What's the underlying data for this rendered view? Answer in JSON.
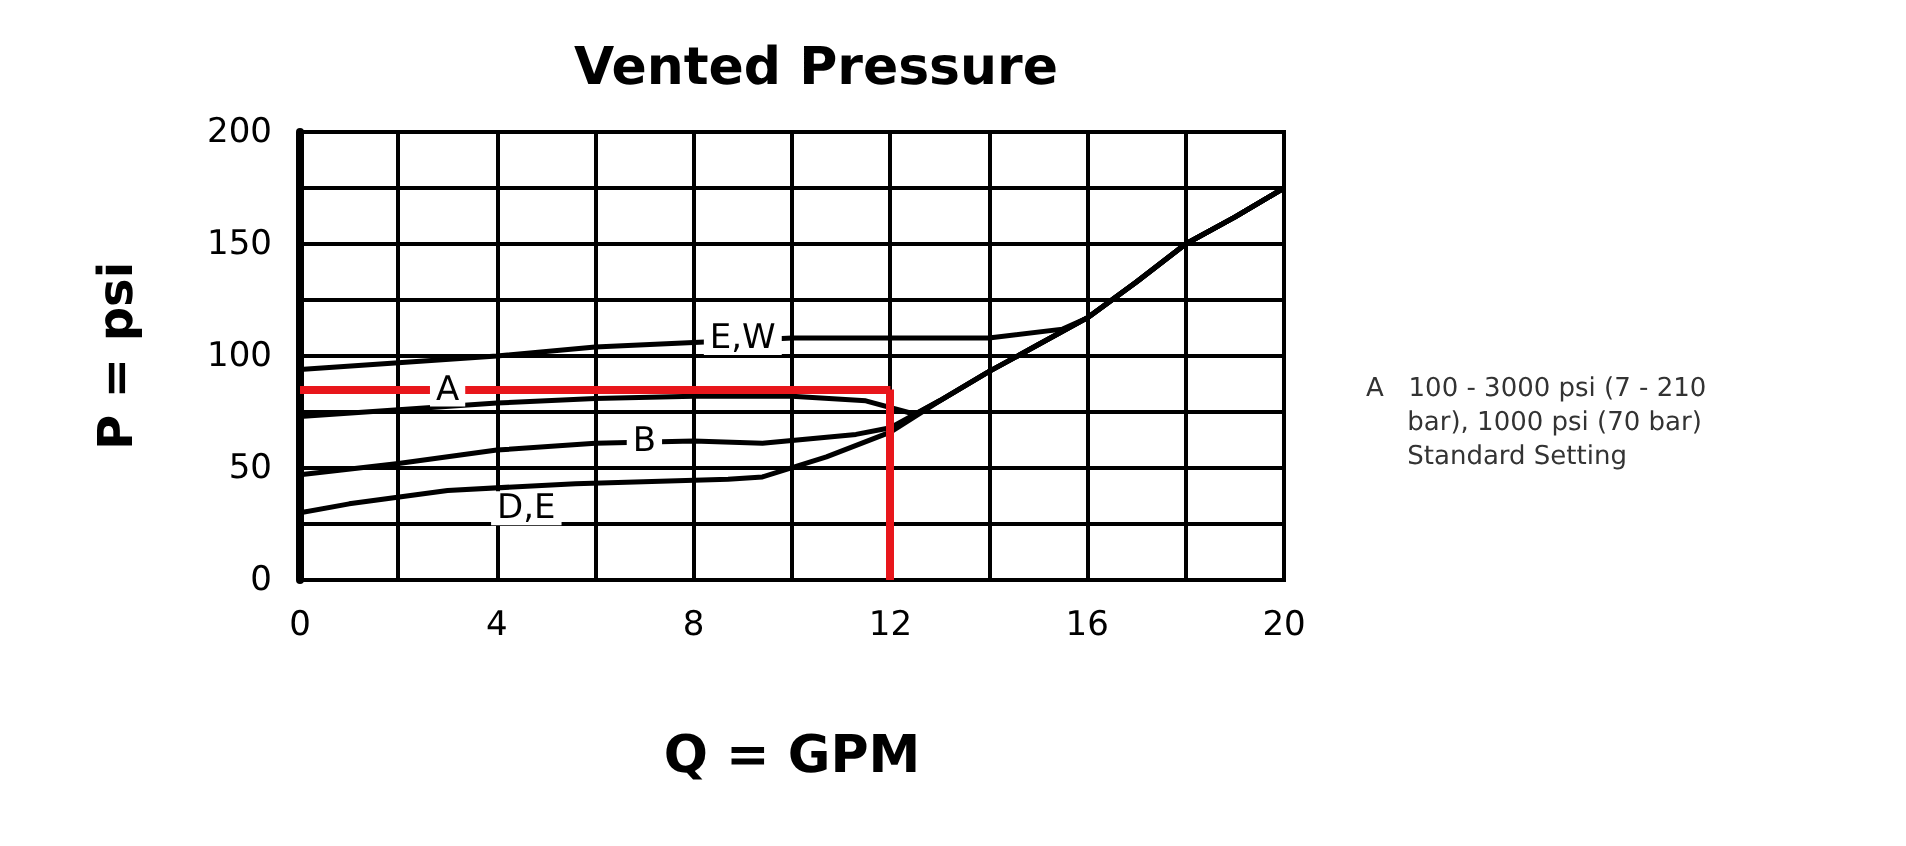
{
  "chart_data": {
    "type": "line",
    "title": "Vented Pressure",
    "xlabel": "Q = GPM",
    "ylabel": "P = psi",
    "xlim": [
      0,
      20
    ],
    "ylim": [
      0,
      200
    ],
    "xticks": [
      0,
      {
        "value": 2,
        "label": null
      },
      4,
      {
        "value": 6,
        "label": null
      },
      8,
      {
        "value": 10,
        "label": null
      },
      12,
      {
        "value": 14,
        "label": null
      },
      16,
      {
        "value": 18,
        "label": null
      },
      20
    ],
    "yticks": [
      0,
      {
        "value": 25,
        "label": null
      },
      50,
      {
        "value": 75,
        "label": null
      },
      100,
      {
        "value": 125,
        "label": null
      },
      150,
      {
        "value": 175,
        "label": null
      },
      200
    ],
    "grid": true,
    "marker": "none",
    "line_style": "solid",
    "series": [
      {
        "color": "#000000",
        "x": [
          0,
          2,
          4,
          6,
          8,
          10,
          12,
          14,
          15.5,
          16,
          17,
          18,
          19,
          20
        ],
        "values": [
          94,
          97,
          100,
          104,
          106,
          108,
          108,
          108,
          112,
          117,
          133,
          150,
          162,
          175
        ]
      },
      {
        "color": "#000000",
        "x": [
          0,
          2,
          4,
          6,
          8,
          10,
          11.5,
          12.5,
          13,
          14,
          15,
          16,
          17,
          18,
          19,
          20
        ],
        "values": [
          73,
          76,
          79,
          81,
          82,
          82,
          80,
          74,
          80,
          93,
          105,
          117,
          133,
          150,
          162,
          175
        ]
      },
      {
        "color": "#000000",
        "x": [
          0,
          2,
          4,
          6,
          8,
          9.4,
          11.3,
          12,
          13,
          14,
          15,
          16,
          17,
          18,
          19,
          20
        ],
        "values": [
          47,
          52,
          58,
          61,
          62,
          61,
          65,
          68,
          80,
          93,
          105,
          117,
          133,
          150,
          162,
          175
        ]
      },
      {
        "color": "#000000",
        "x": [
          0,
          1,
          3,
          5.6,
          8.7,
          9.4,
          10.7,
          12,
          13,
          14,
          15,
          16,
          17,
          18,
          19,
          20
        ],
        "values": [
          30,
          34,
          40,
          43,
          45,
          46,
          55,
          66,
          80,
          93,
          105,
          117,
          133,
          150,
          162,
          175
        ]
      }
    ],
    "ref_lines": [
      {
        "axis": "y",
        "value": 85,
        "color": "#e8161b"
      },
      {
        "axis": "x",
        "value": 12,
        "color": "#e8161b"
      }
    ],
    "annotations": [
      {
        "text": "E,W",
        "x": 9,
        "y": 108
      },
      {
        "text": "A",
        "x": 3,
        "y": 85
      },
      {
        "text": "B",
        "x": 7,
        "y": 62
      },
      {
        "text": "D,E",
        "x": 4.6,
        "y": 32
      },
      "A   100 - 3000 psi (7 - 210\n     bar), 1000 psi (70 bar)\n     Standard Setting"
    ]
  }
}
